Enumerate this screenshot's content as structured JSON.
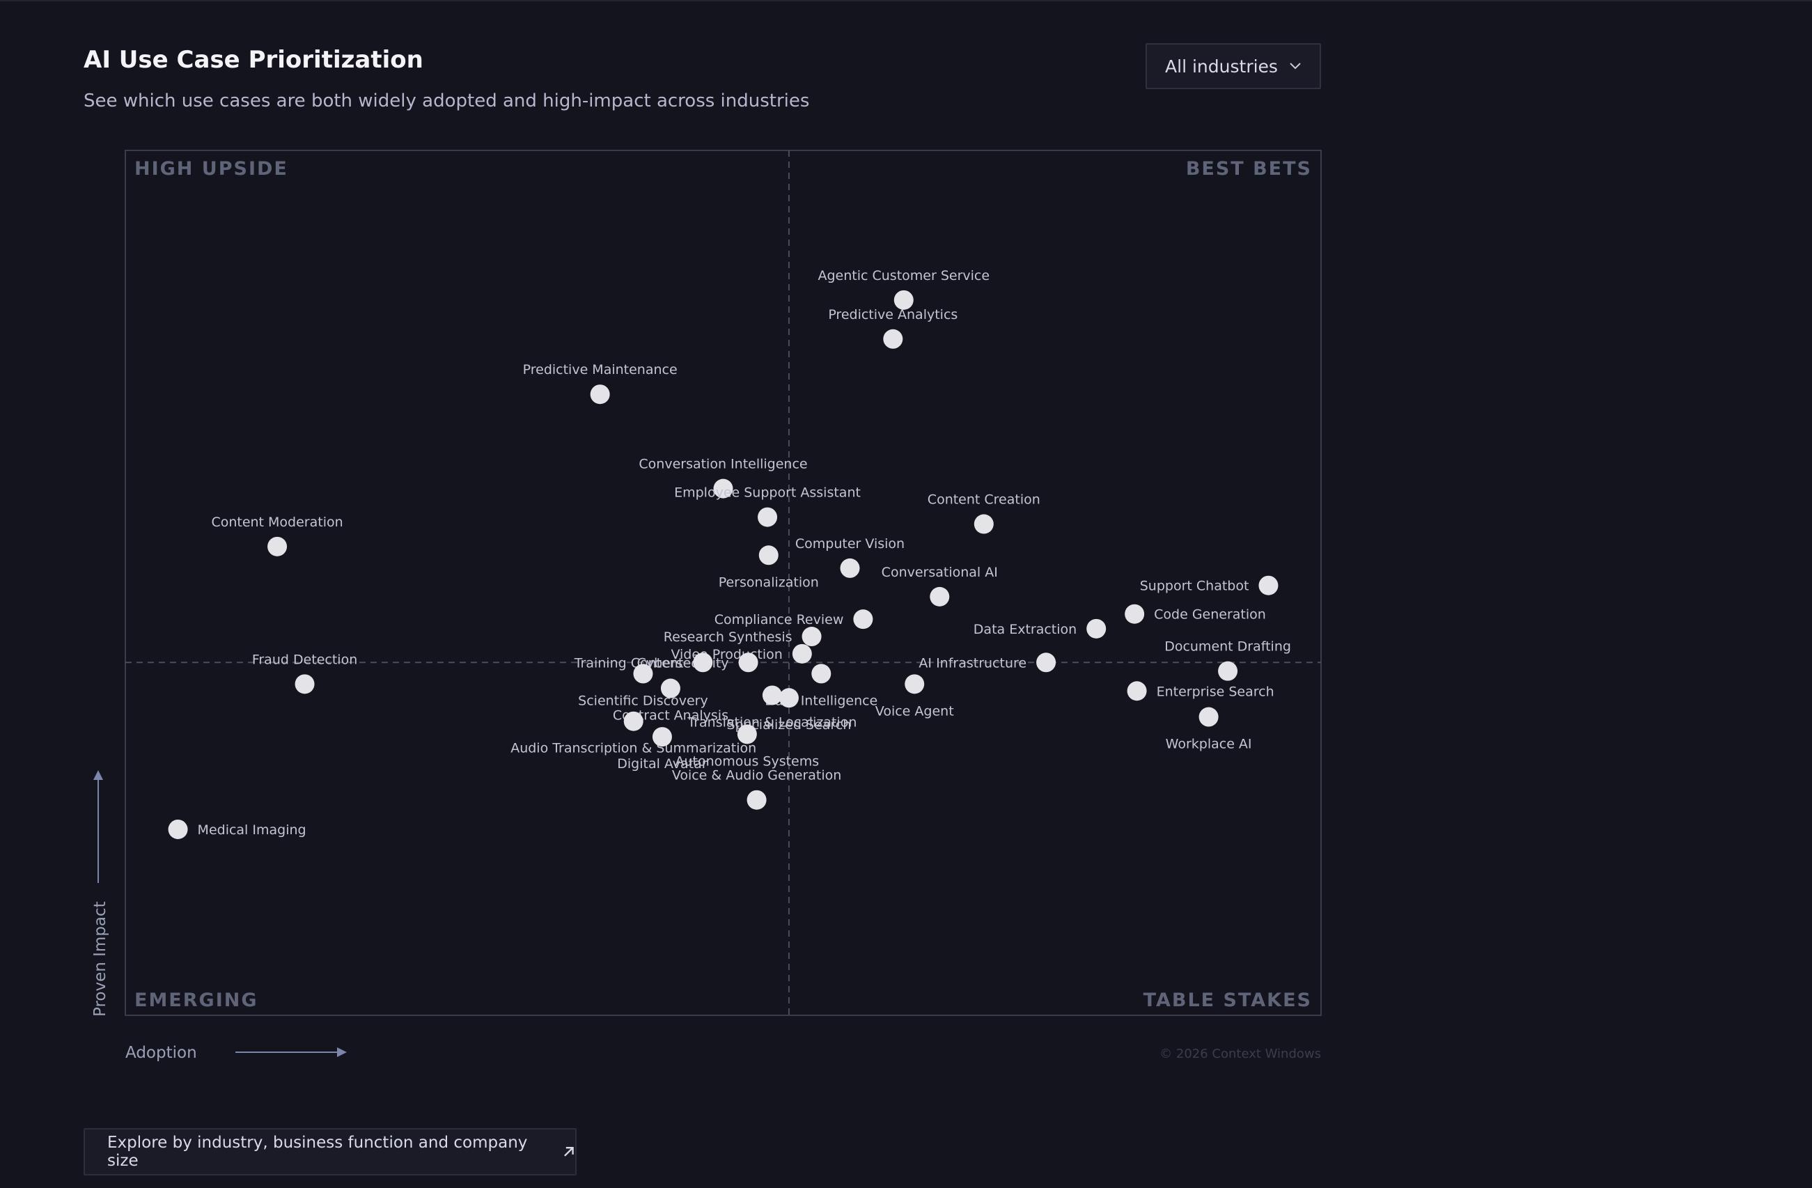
{
  "header": {
    "title": "AI Use Case Prioritization",
    "subtitle": "See which use cases are both widely adopted and high-impact across industries"
  },
  "filter": {
    "label": "All industries",
    "icon": "chevron-down-icon"
  },
  "footer": {
    "explore_label": "Explore by industry, business function and company size",
    "icon": "arrow-up-right-icon"
  },
  "copyright": "© 2026 Context Windows",
  "colors": {
    "background": "#14141e",
    "point": "#e3e3e8",
    "label": "#c3c6d2",
    "quadrant_label": "#5f6478",
    "frame": "#3a3c4b",
    "axis": "#7c86ad"
  },
  "chart_data": {
    "type": "scatter",
    "xlabel": "Adoption",
    "ylabel": "Proven Impact",
    "xlim": [
      0,
      100
    ],
    "ylim": [
      0,
      100
    ],
    "dividers": {
      "x": 55.5,
      "y": 40.8
    },
    "quadrants": {
      "top_left": "HIGH UPSIDE",
      "top_right": "BEST BETS",
      "bottom_left": "EMERGING",
      "bottom_right": "TABLE STAKES"
    },
    "points": [
      {
        "name": "Agentic Customer Service",
        "x": 65.1,
        "y": 82.7,
        "label_pos": "above"
      },
      {
        "name": "Predictive Analytics",
        "x": 64.2,
        "y": 78.2,
        "label_pos": "above"
      },
      {
        "name": "Predictive Maintenance",
        "x": 39.7,
        "y": 71.8,
        "label_pos": "above"
      },
      {
        "name": "Conversation Intelligence",
        "x": 50.0,
        "y": 60.9,
        "label_pos": "above"
      },
      {
        "name": "Employee Support Assistant",
        "x": 53.7,
        "y": 57.6,
        "label_pos": "above"
      },
      {
        "name": "Content Creation",
        "x": 71.8,
        "y": 56.8,
        "label_pos": "above"
      },
      {
        "name": "Content Moderation",
        "x": 12.7,
        "y": 54.2,
        "label_pos": "above"
      },
      {
        "name": "Personalization",
        "x": 53.8,
        "y": 53.2,
        "label_pos": "below"
      },
      {
        "name": "Computer Vision",
        "x": 60.6,
        "y": 51.7,
        "label_pos": "above"
      },
      {
        "name": "Conversational AI",
        "x": 68.1,
        "y": 48.4,
        "label_pos": "above"
      },
      {
        "name": "Support Chatbot",
        "x": 95.6,
        "y": 49.7,
        "label_pos": "left"
      },
      {
        "name": "Code Generation",
        "x": 84.4,
        "y": 46.4,
        "label_pos": "right"
      },
      {
        "name": "Data Extraction",
        "x": 81.2,
        "y": 44.7,
        "label_pos": "left"
      },
      {
        "name": "Compliance Review",
        "x": 61.7,
        "y": 45.8,
        "label_pos": "left"
      },
      {
        "name": "Research Synthesis",
        "x": 57.4,
        "y": 43.8,
        "label_pos": "left"
      },
      {
        "name": "Video Production",
        "x": 56.6,
        "y": 41.8,
        "label_pos": "left"
      },
      {
        "name": "Cybersecurity",
        "x": 52.1,
        "y": 40.8,
        "label_pos": "left"
      },
      {
        "name": "Training Content",
        "x": 48.3,
        "y": 40.8,
        "label_pos": "left"
      },
      {
        "name": "AI Infrastructure",
        "x": 77.0,
        "y": 40.8,
        "label_pos": "left"
      },
      {
        "name": "Document Drafting",
        "x": 92.2,
        "y": 39.8,
        "label_pos": "above"
      },
      {
        "name": "Data Intelligence",
        "x": 58.2,
        "y": 39.5,
        "label_pos": "below"
      },
      {
        "name": "Fraud Detection",
        "x": 15.0,
        "y": 38.3,
        "label_pos": "above"
      },
      {
        "name": "Scientific Discovery",
        "x": 43.3,
        "y": 39.5,
        "label_pos": "below"
      },
      {
        "name": "Contract Analysis",
        "x": 45.6,
        "y": 37.8,
        "label_pos": "below"
      },
      {
        "name": "Specialized Search",
        "x": 55.5,
        "y": 36.7,
        "label_pos": "below"
      },
      {
        "name": "Voice Agent",
        "x": 66.0,
        "y": 38.3,
        "label_pos": "below"
      },
      {
        "name": "Enterprise Search",
        "x": 84.6,
        "y": 37.5,
        "label_pos": "right"
      },
      {
        "name": "Workplace AI",
        "x": 90.6,
        "y": 34.5,
        "label_pos": "below"
      },
      {
        "name": "Translation & Localization",
        "x": 54.1,
        "y": 37.0,
        "label_pos": "below"
      },
      {
        "name": "Audio Transcription & Summarization",
        "x": 42.5,
        "y": 34.0,
        "label_pos": "below"
      },
      {
        "name": "Autonomous Systems",
        "x": 52.0,
        "y": 32.5,
        "label_pos": "below"
      },
      {
        "name": "Digital Avatar",
        "x": 44.9,
        "y": 32.2,
        "label_pos": "below"
      },
      {
        "name": "Voice & Audio Generation",
        "x": 52.8,
        "y": 24.9,
        "label_pos": "above"
      },
      {
        "name": "Medical Imaging",
        "x": 4.4,
        "y": 21.5,
        "label_pos": "right"
      }
    ]
  }
}
